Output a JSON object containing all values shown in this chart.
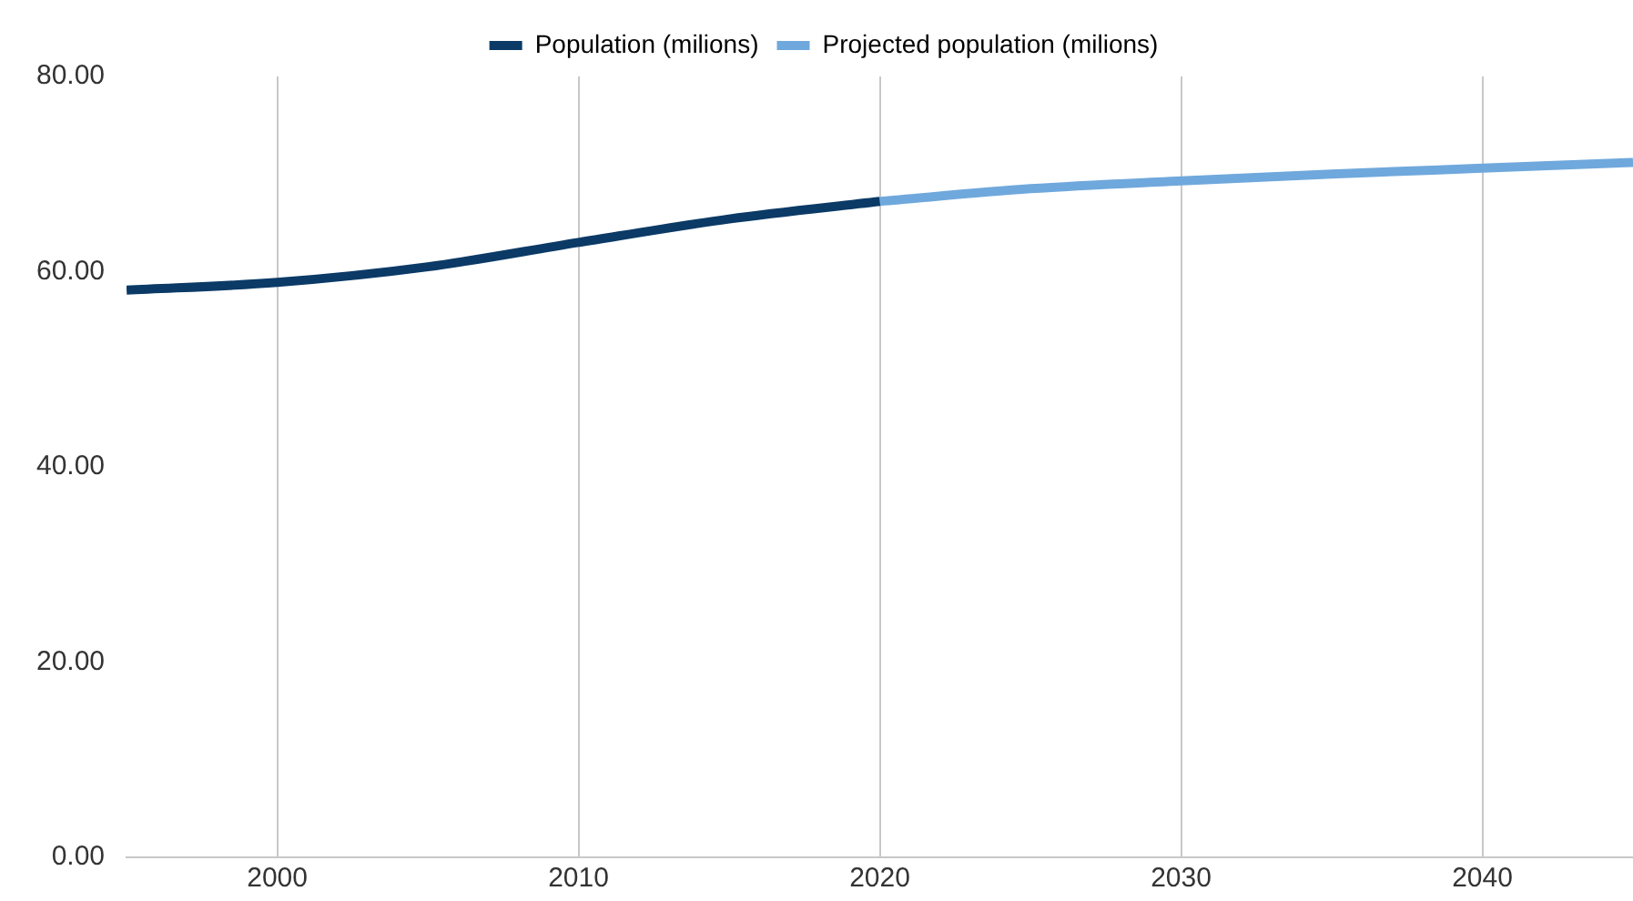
{
  "chart_data": {
    "type": "line",
    "series": [
      {
        "name": "Population (milions)",
        "color": "#0b3a66",
        "x": [
          1995,
          2000,
          2005,
          2010,
          2015,
          2020
        ],
        "values": [
          58.1,
          58.9,
          60.5,
          63.0,
          65.4,
          67.2
        ]
      },
      {
        "name": "Projected population (milions)",
        "color": "#6fa8dc",
        "x": [
          2020,
          2025,
          2030,
          2035,
          2040,
          2045
        ],
        "values": [
          67.2,
          68.5,
          69.3,
          70.0,
          70.6,
          71.2
        ]
      }
    ],
    "xlim": [
      1995,
      2045
    ],
    "xticks": [
      2000,
      2010,
      2020,
      2030,
      2040
    ],
    "ylim": [
      0,
      80
    ],
    "yticks": [
      {
        "value": 0,
        "label": "0.00"
      },
      {
        "value": 20,
        "label": "20.00"
      },
      {
        "value": 40,
        "label": "40.00"
      },
      {
        "value": 60,
        "label": "60.00"
      },
      {
        "value": 80,
        "label": "80.00"
      }
    ],
    "grid": "x",
    "legend": "top",
    "marker": "none",
    "line_style": "solid"
  }
}
